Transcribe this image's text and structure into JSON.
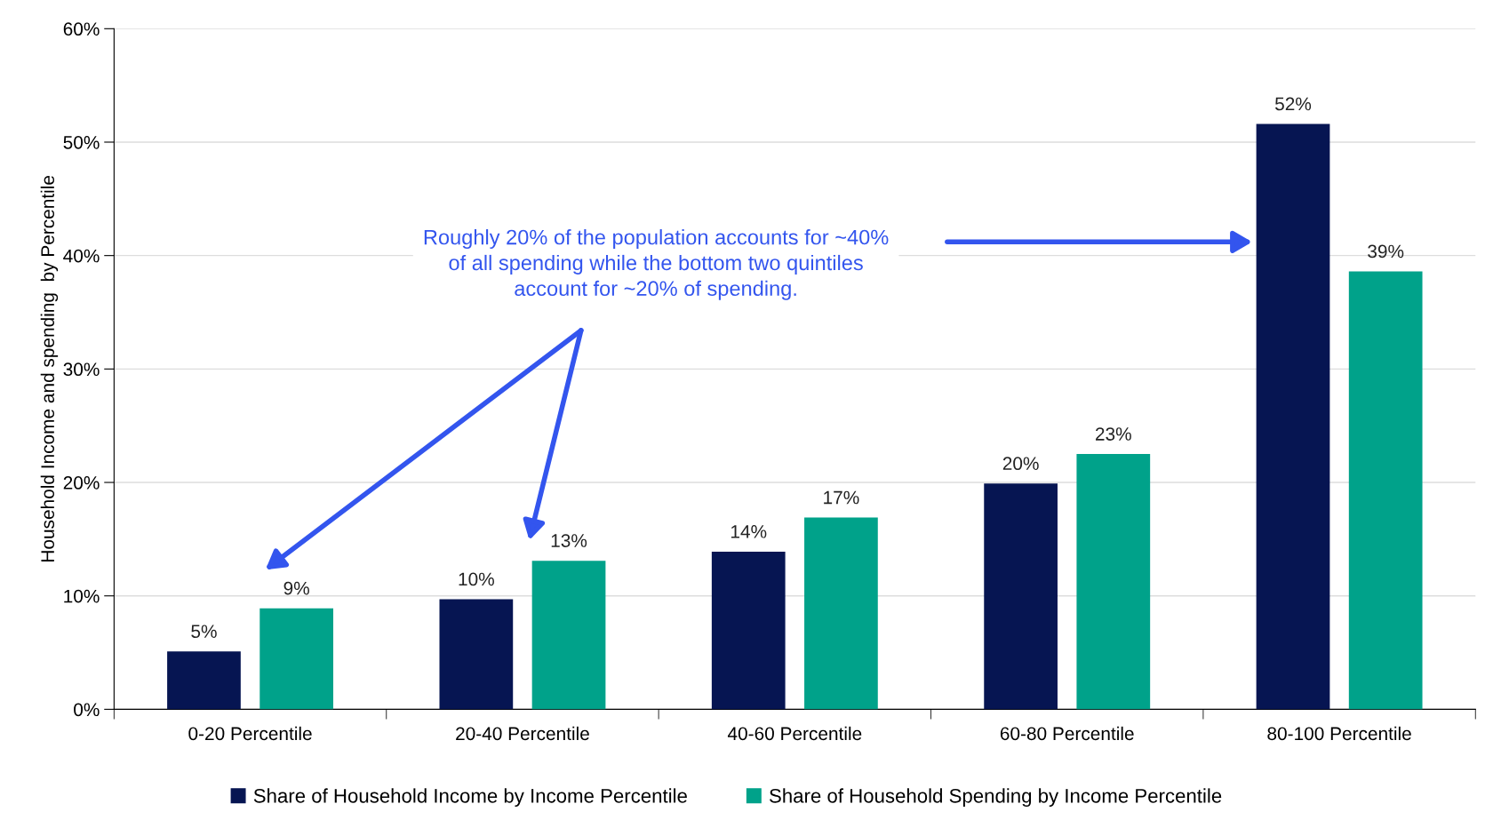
{
  "chart_data": {
    "type": "bar",
    "ylabel": "Household Income and spending  by Percentile",
    "categories": [
      "0-20 Percentile",
      "20-40 Percentile",
      "40-60 Percentile",
      "60-80 Percentile",
      "80-100 Percentile"
    ],
    "series": [
      {
        "name": "Share of Household Income by Income Percentile",
        "color": "#061552",
        "values": [
          5.1,
          9.7,
          13.9,
          19.9,
          51.6
        ],
        "value_labels": [
          "5%",
          "10%",
          "14%",
          "20%",
          "52%"
        ]
      },
      {
        "name": "Share of Household Spending by Income Percentile",
        "color": "#00a28a",
        "values": [
          8.9,
          13.1,
          16.9,
          22.5,
          38.6
        ],
        "value_labels": [
          "9%",
          "13%",
          "17%",
          "23%",
          "39%"
        ]
      }
    ],
    "ylim": [
      0,
      60
    ],
    "yticks": [
      {
        "value": 0,
        "label": "0%"
      },
      {
        "value": 10,
        "label": "10%"
      },
      {
        "value": 20,
        "label": "20%"
      },
      {
        "value": 30,
        "label": "30%"
      },
      {
        "value": 40,
        "label": "40%"
      },
      {
        "value": 50,
        "label": "50%"
      },
      {
        "value": 60,
        "label": "60%"
      }
    ],
    "grid": "y",
    "legend": "bottom",
    "annotations": [
      "Roughly 20% of the population accounts for ~40%\nof all spending while the bottom two quintiles\naccount for ~20% of spending."
    ]
  }
}
